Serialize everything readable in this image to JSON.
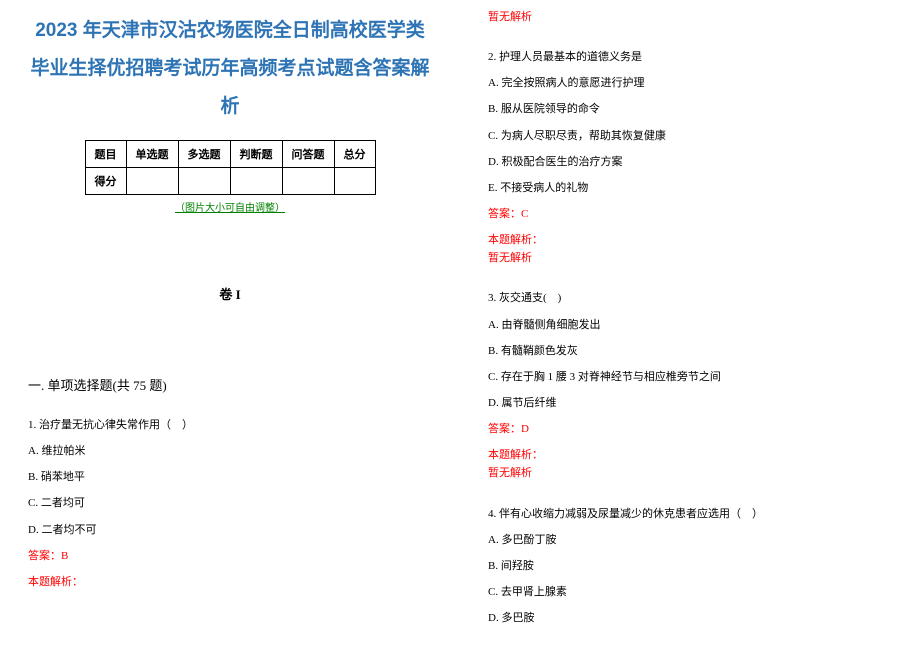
{
  "title_lines": [
    "2023 年天津市汉沽农场医院全日制高校医学类",
    "毕业生择优招聘考试历年高频考点试题含答案解",
    "析"
  ],
  "table": {
    "headers": [
      "题目",
      "单选题",
      "多选题",
      "判断题",
      "问答题",
      "总分"
    ],
    "row_label": "得分"
  },
  "img_note": "（图片大小可自由调整）",
  "juan": "卷 I",
  "section_mc": "一. 单项选择题(共 75 题)",
  "answer_label_prefix": "答案：",
  "explain_label": "本题解析：",
  "explain_none": "暂无解析",
  "q1": {
    "stem": "1. 治疗量无抗心律失常作用（　）",
    "opts": [
      "A. 维拉帕米",
      "B. 硝苯地平",
      "C. 二者均可",
      "D. 二者均不可"
    ],
    "ans": "B"
  },
  "q2": {
    "stem": "2. 护理人员最基本的道德义务是",
    "opts": [
      "A. 完全按照病人的意愿进行护理",
      "B. 服从医院领导的命令",
      "C. 为病人尽职尽责，帮助其恢复健康",
      "D. 积极配合医生的治疗方案",
      "E. 不接受病人的礼物"
    ],
    "ans": "C"
  },
  "q3": {
    "stem": "3. 灰交通支(　)",
    "opts": [
      "A. 由脊髓侧角细胞发出",
      "B. 有髓鞘颜色发灰",
      "C. 存在于胸 1 腰 3 对脊神经节与相应椎旁节之间",
      "D. 属节后纤维"
    ],
    "ans": "D"
  },
  "q4": {
    "stem": "4. 伴有心收缩力减弱及尿量减少的休克患者应选用（　）",
    "opts": [
      "A. 多巴酚丁胺",
      "B. 间羟胺",
      "C. 去甲肾上腺素",
      "D. 多巴胺"
    ]
  }
}
